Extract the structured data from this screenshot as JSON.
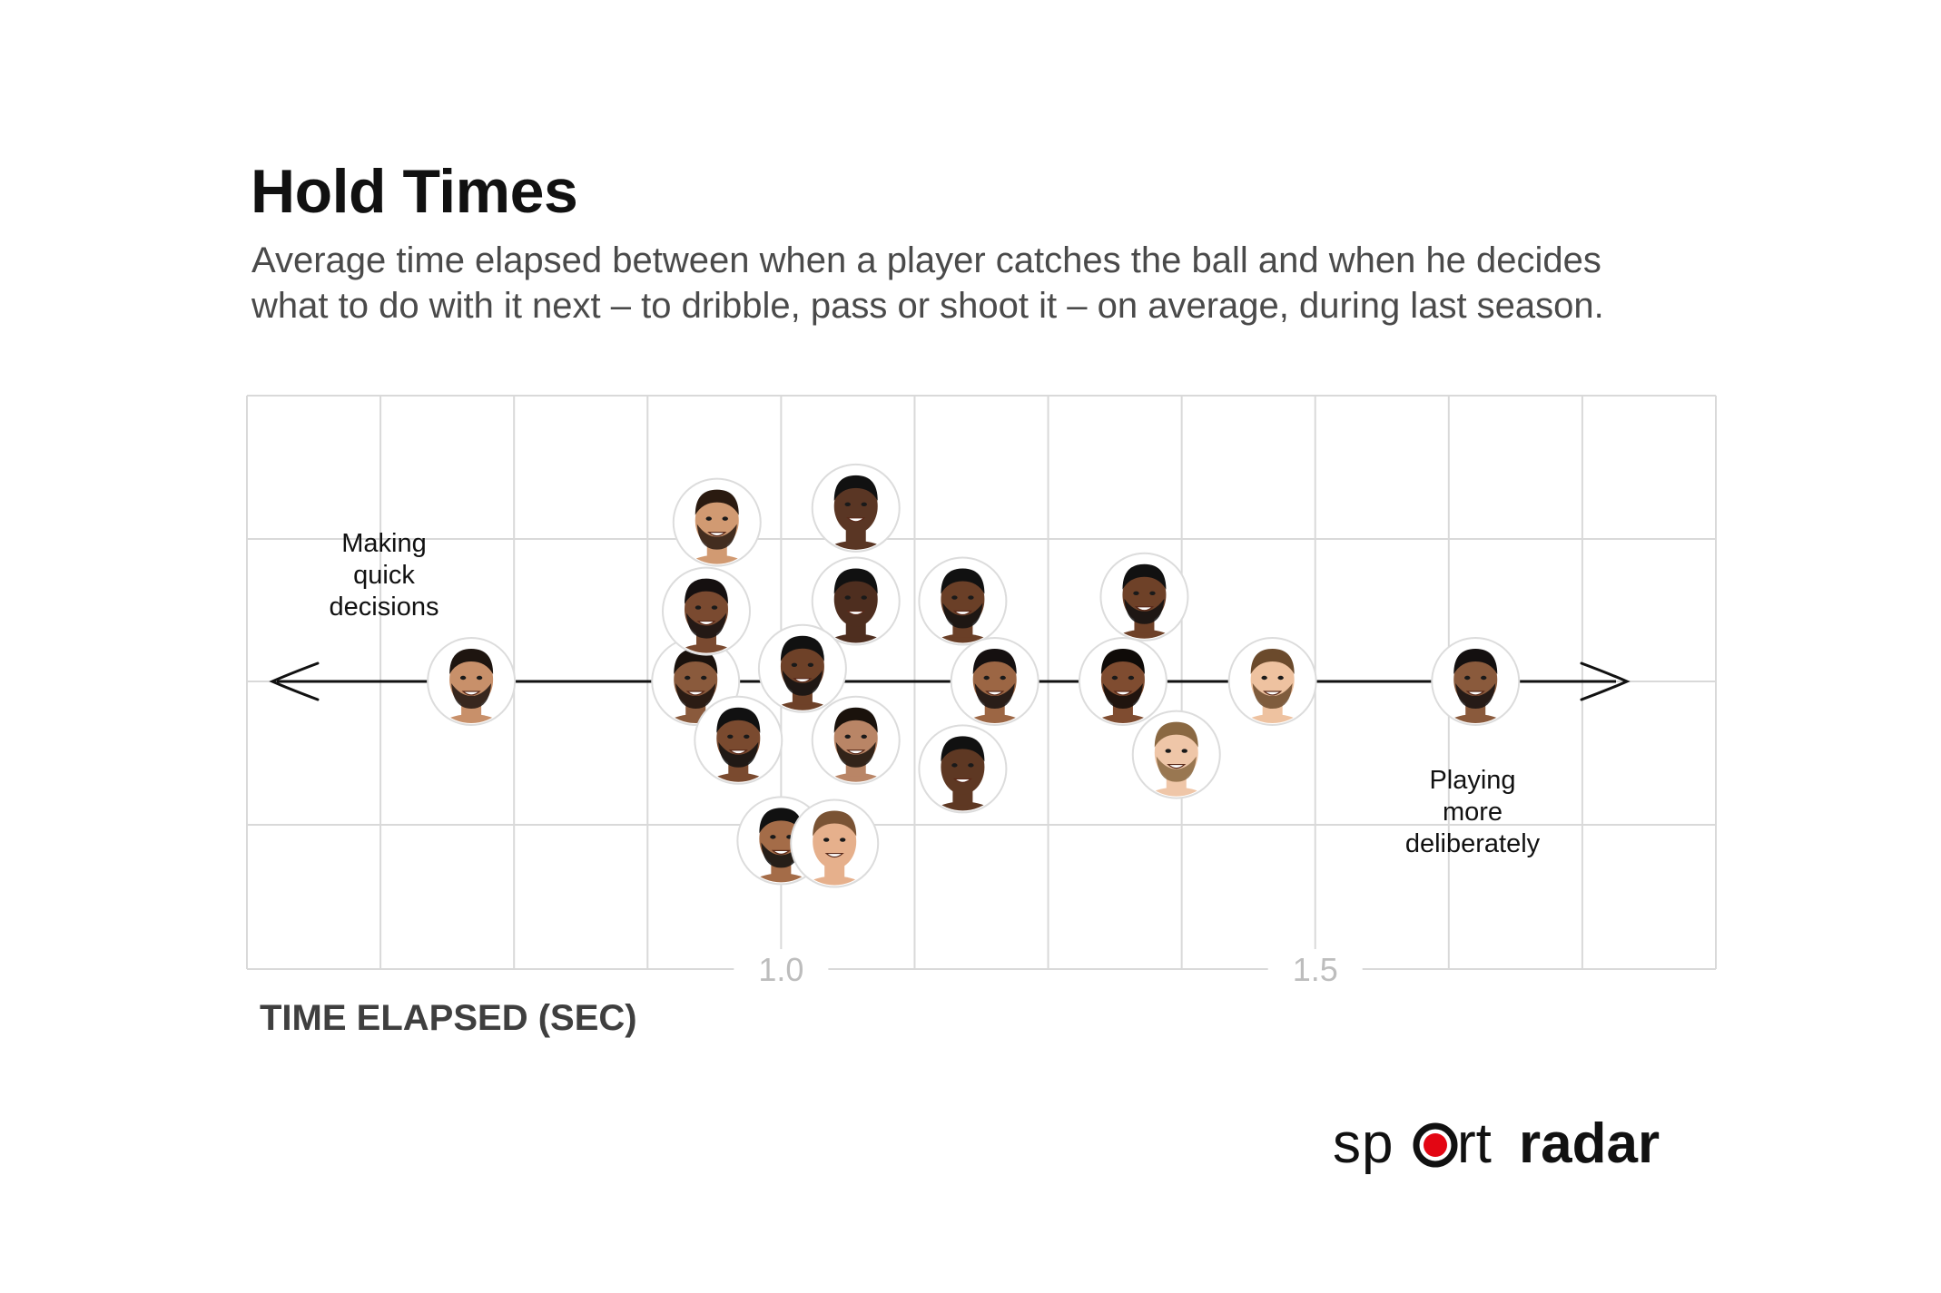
{
  "chart_data": {
    "type": "scatter",
    "title": "Hold Times",
    "subtitle": [
      "Average time elapsed between when a player catches the ball and when he decides",
      "what to do with it next – to dribble, pass or shoot it – on average, during last season."
    ],
    "xlabel": "TIME ELAPSED (SEC)",
    "xlim": [
      0.5,
      1.875
    ],
    "ticks": [
      {
        "value": 1.0,
        "label": "1.0"
      },
      {
        "value": 1.5,
        "label": "1.5"
      }
    ],
    "grid": true,
    "annotations": {
      "left": [
        "Making",
        "quick",
        "decisions"
      ],
      "right": [
        "Playing",
        "more",
        "deliberately"
      ]
    },
    "points": [
      {
        "x": 0.71,
        "y": 0,
        "skin": "#c8906a",
        "hair": "#1e1510",
        "beard": true
      },
      {
        "x": 0.92,
        "y": 0,
        "skin": "#8a5a3c",
        "hair": "#1a120d",
        "beard": true
      },
      {
        "x": 0.94,
        "y": 1.11,
        "skin": "#d19a72",
        "hair": "#2a1a10",
        "beard": true
      },
      {
        "x": 1.07,
        "y": 1.21,
        "skin": "#5a3624",
        "hair": "#111111",
        "beard": false
      },
      {
        "x": 0.93,
        "y": 0.49,
        "skin": "#7a4a30",
        "hair": "#151010",
        "beard": true
      },
      {
        "x": 1.07,
        "y": 0.56,
        "skin": "#4e2e1f",
        "hair": "#111111",
        "beard": false
      },
      {
        "x": 1.02,
        "y": 0.09,
        "skin": "#6e4128",
        "hair": "#111111",
        "beard": true
      },
      {
        "x": 0.96,
        "y": -0.41,
        "skin": "#7a4a2f",
        "hair": "#111111",
        "beard": true
      },
      {
        "x": 1.07,
        "y": -0.41,
        "skin": "#b98566",
        "hair": "#1a120c",
        "beard": true
      },
      {
        "x": 1.17,
        "y": 0.56,
        "skin": "#6a3f27",
        "hair": "#111111",
        "beard": true
      },
      {
        "x": 1.2,
        "y": 0,
        "skin": "#9c6644",
        "hair": "#151010",
        "beard": true
      },
      {
        "x": 1.17,
        "y": -0.61,
        "skin": "#5e3823",
        "hair": "#111111",
        "beard": false
      },
      {
        "x": 1.0,
        "y": -1.11,
        "skin": "#a46c48",
        "hair": "#111111",
        "beard": true
      },
      {
        "x": 1.05,
        "y": -1.13,
        "skin": "#e6b08c",
        "hair": "#7a5334",
        "beard": false
      },
      {
        "x": 1.34,
        "y": 0.59,
        "skin": "#6e4128",
        "hair": "#111111",
        "beard": true
      },
      {
        "x": 1.32,
        "y": 0,
        "skin": "#7f4c30",
        "hair": "#0f0b08",
        "beard": true
      },
      {
        "x": 1.46,
        "y": 0,
        "skin": "#eec2a0",
        "hair": "#6b4a2c",
        "beard": true
      },
      {
        "x": 1.37,
        "y": -0.51,
        "skin": "#efc6a8",
        "hair": "#8a6842",
        "beard": true
      },
      {
        "x": 1.65,
        "y": 0,
        "skin": "#8a5a3c",
        "hair": "#141010",
        "beard": true
      }
    ]
  },
  "logo": {
    "text_left": "sp",
    "text_mid": "rt",
    "text_bold": "radar",
    "accent": "#e30613"
  },
  "colors": {
    "grid": "#d9d9d9",
    "axis_line": "#111111",
    "tick_label": "#bdbdbd"
  }
}
